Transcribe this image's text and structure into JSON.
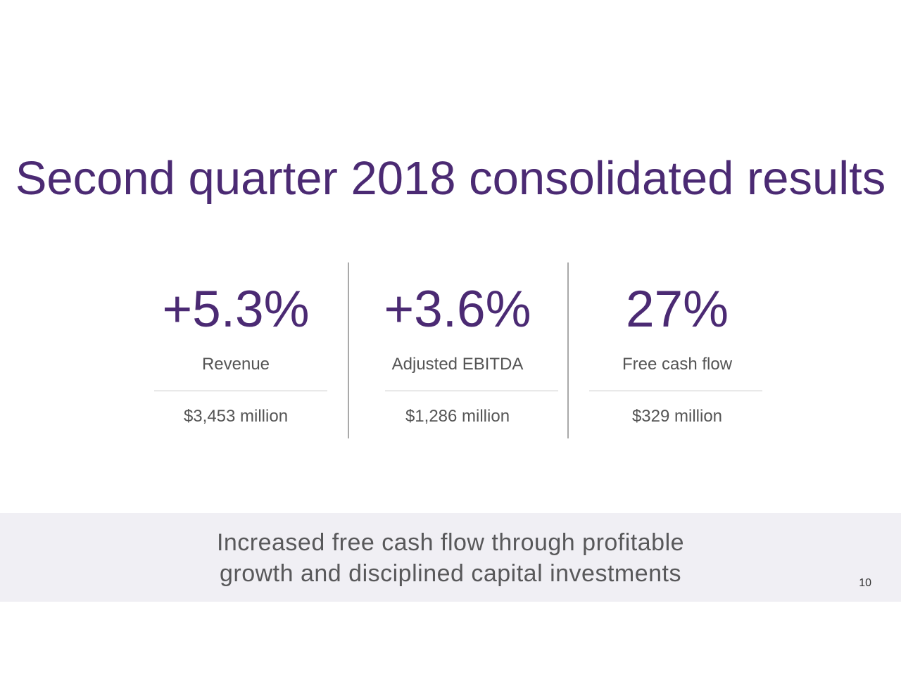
{
  "slide": {
    "title": "Second quarter 2018 consolidated results",
    "metrics": [
      {
        "value": "+5.3%",
        "label": "Revenue",
        "amount": "$3,453 million"
      },
      {
        "value": "+3.6%",
        "label": "Adjusted EBITDA",
        "amount": "$1,286 million"
      },
      {
        "value": "27%",
        "label": "Free cash flow",
        "amount": "$329 million"
      }
    ],
    "banner": {
      "line1": "Increased free cash flow through profitable",
      "line2": "growth and disciplined capital investments"
    },
    "page_number": "10"
  },
  "colors": {
    "title": "#4b2a73",
    "body_text": "#555555",
    "banner_bg": "#f0eff4",
    "divider": "#a9a9a9"
  }
}
